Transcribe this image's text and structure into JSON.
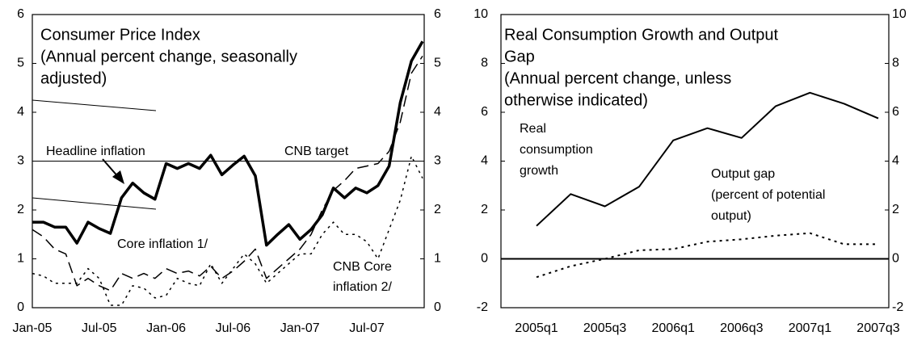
{
  "chart_data": [
    {
      "type": "line",
      "title": "Consumer Price Index",
      "subtitle": [
        "(Annual percent change, seasonally",
        "adjusted)"
      ],
      "categories": [
        "Jan-05",
        null,
        null,
        null,
        null,
        null,
        "Jul-05",
        null,
        null,
        null,
        null,
        null,
        "Jan-06",
        null,
        null,
        null,
        null,
        null,
        "Jul-06",
        null,
        null,
        null,
        null,
        null,
        "Jan-07",
        null,
        null,
        null,
        null,
        null,
        "Jul-07",
        null,
        null,
        null,
        null,
        null
      ],
      "series": [
        {
          "color": "#000000",
          "style": "solid",
          "width": 3.5,
          "values": [
            1.75,
            1.75,
            1.65,
            1.65,
            1.32,
            1.75,
            1.62,
            1.52,
            2.25,
            2.55,
            2.35,
            2.22,
            2.95,
            2.85,
            2.95,
            2.85,
            3.12,
            2.72,
            2.92,
            3.1,
            2.7,
            1.28,
            1.5,
            1.7,
            1.4,
            1.6,
            1.9,
            2.45,
            2.25,
            2.45,
            2.35,
            2.5,
            2.9,
            4.2,
            5.05,
            5.45
          ]
        },
        {
          "color": "#000000",
          "style": "dashed",
          "width": 1.5,
          "values": [
            1.6,
            1.45,
            1.2,
            1.1,
            0.45,
            0.6,
            0.45,
            0.35,
            0.7,
            0.6,
            0.7,
            0.6,
            0.8,
            0.7,
            0.75,
            0.65,
            0.85,
            0.6,
            0.75,
            0.95,
            1.2,
            0.6,
            0.8,
            1.0,
            1.2,
            1.5,
            2.0,
            2.4,
            2.6,
            2.85,
            2.9,
            2.95,
            3.2,
            3.8,
            4.8,
            5.15
          ]
        },
        {
          "color": "#000000",
          "style": "dotted",
          "width": 1.5,
          "values": [
            0.7,
            0.65,
            0.5,
            0.5,
            0.5,
            0.8,
            0.6,
            0.05,
            0.05,
            0.45,
            0.4,
            0.2,
            0.25,
            0.6,
            0.5,
            0.45,
            0.9,
            0.5,
            0.8,
            1.1,
            0.9,
            0.5,
            0.7,
            0.9,
            1.1,
            1.1,
            1.5,
            1.75,
            1.5,
            1.5,
            1.35,
            1.0,
            1.6,
            2.2,
            3.1,
            2.65
          ]
        }
      ],
      "hlines": [
        {
          "value": 3,
          "width": 1
        }
      ],
      "annotations": [
        [
          "Headline inflation"
        ],
        [
          "CNB target"
        ],
        [
          "Core inflation 1/"
        ],
        [
          "CNB Core",
          "inflation 2/"
        ]
      ],
      "ylim": [
        0,
        6
      ],
      "yticks": [
        0,
        1,
        2,
        3,
        4,
        5,
        6
      ],
      "y2lim": [
        0,
        6
      ],
      "y2ticks": [
        0,
        1,
        2,
        3,
        4,
        5,
        6
      ]
    },
    {
      "type": "line",
      "title": [
        "Real Consumption Growth and Output",
        "Gap"
      ],
      "subtitle": [
        "(Annual percent change, unless",
        "otherwise indicated)"
      ],
      "categories": [
        "2005q1",
        null,
        "2005q3",
        null,
        "2006q1",
        null,
        "2006q3",
        null,
        "2007q1",
        null,
        "2007q3"
      ],
      "series": [
        {
          "color": "#000000",
          "style": "solid",
          "width": 2,
          "values": [
            1.35,
            2.65,
            2.15,
            2.95,
            4.85,
            5.35,
            4.95,
            6.25,
            6.8,
            6.35,
            5.75
          ]
        },
        {
          "color": "#000000",
          "style": "dotted",
          "width": 2,
          "values": [
            -0.75,
            -0.3,
            0.0,
            0.35,
            0.4,
            0.7,
            0.8,
            0.95,
            1.05,
            0.6,
            0.6
          ]
        }
      ],
      "hlines": [
        {
          "value": 0,
          "width": 2
        }
      ],
      "annotations": [
        [
          "Real",
          "consumption",
          "growth"
        ],
        [
          "Output gap",
          "(percent of potential",
          "output)"
        ]
      ],
      "ylim": [
        -2,
        10
      ],
      "yticks": [
        -2,
        0,
        2,
        4,
        6,
        8,
        10
      ],
      "y2lim": [
        -2,
        10
      ],
      "y2ticks": [
        -2,
        0,
        2,
        4,
        6,
        8,
        10
      ]
    }
  ]
}
